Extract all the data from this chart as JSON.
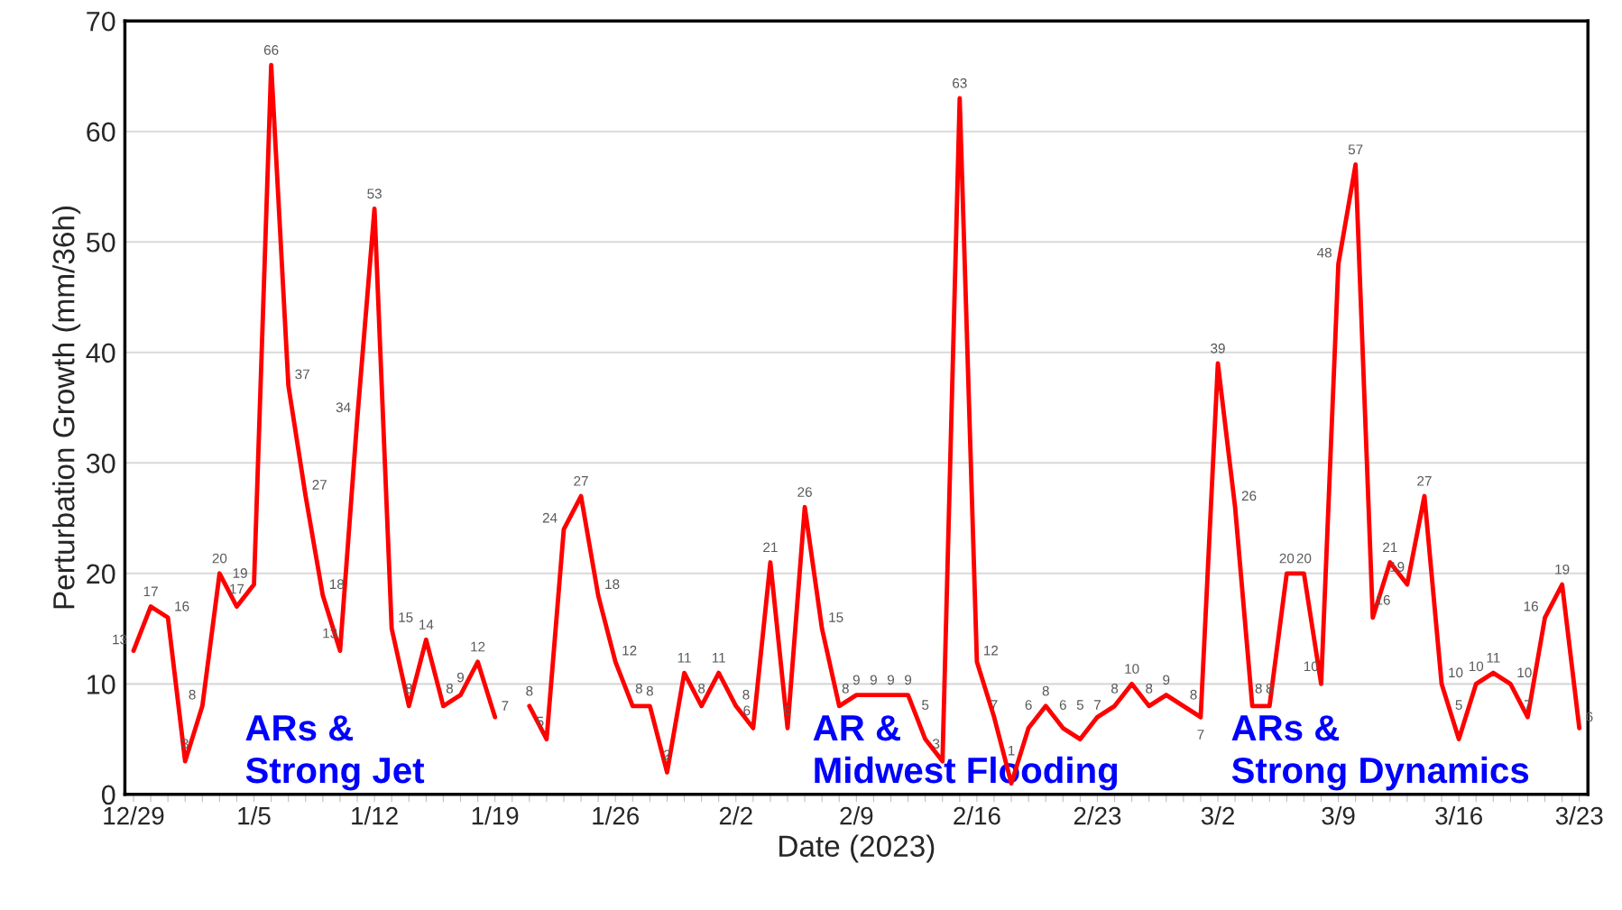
{
  "chart_data": {
    "type": "line",
    "xlabel": "Date (2023)",
    "ylabel": "Perturbation Growth (mm/36h)",
    "categories": [
      "12/29",
      null,
      null,
      null,
      null,
      null,
      null,
      "1/5",
      null,
      null,
      null,
      null,
      null,
      null,
      "1/12",
      null,
      null,
      null,
      null,
      null,
      null,
      "1/19",
      null,
      null,
      null,
      null,
      null,
      null,
      "1/26",
      null,
      null,
      null,
      null,
      null,
      null,
      "2/2",
      null,
      null,
      null,
      null,
      null,
      null,
      "2/9",
      null,
      null,
      null,
      null,
      null,
      null,
      "2/16",
      null,
      null,
      null,
      null,
      null,
      null,
      "2/23",
      null,
      null,
      null,
      null,
      null,
      null,
      "3/2",
      null,
      null,
      null,
      null,
      null,
      null,
      "3/9",
      null,
      null,
      null,
      null,
      null,
      null,
      "3/16",
      null,
      null,
      null,
      null,
      null,
      null,
      "3/23"
    ],
    "series": [
      {
        "color": "#ff0000",
        "values": [
          13,
          17,
          16,
          3,
          8,
          20,
          17,
          19,
          66,
          37,
          27,
          18,
          13,
          34,
          53,
          15,
          8,
          14,
          8,
          9,
          12,
          7,
          null,
          8,
          5,
          24,
          27,
          18,
          12,
          8,
          8,
          2,
          11,
          8,
          11,
          8,
          6,
          21,
          6,
          26,
          15,
          8,
          9,
          9,
          9,
          9,
          5,
          3,
          63,
          12,
          7,
          1,
          6,
          8,
          6,
          5,
          7,
          8,
          10,
          8,
          9,
          8,
          7,
          39,
          26,
          8,
          8,
          20,
          20,
          10,
          48,
          57,
          16,
          21,
          19,
          27,
          10,
          5,
          10,
          11,
          10,
          7,
          16,
          19,
          6
        ]
      }
    ],
    "data_labels": true,
    "ylim": [
      0,
      70
    ],
    "yticks": [
      0,
      10,
      20,
      30,
      40,
      50,
      60,
      70
    ],
    "grid": "y",
    "marker": "none",
    "line_style": "solid",
    "annotations": [
      "ARs &\nStrong Jet",
      "AR &\nMidwest Flooding",
      "ARs &\nStrong Dynamics"
    ]
  }
}
